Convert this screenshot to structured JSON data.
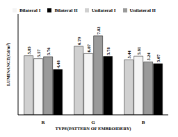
{
  "chart_data": {
    "type": "bar",
    "x_label": "TYPE(PATTERN OF EMBROIDERY)",
    "y_label": "LUMINANCE(Cd/m²)",
    "categories": [
      "R",
      "G",
      "B"
    ],
    "series": [
      {
        "name": "Unilateral I",
        "color": "#d0d0d0",
        "values": [
          5.85,
          6.79,
          5.44
        ]
      },
      {
        "name": "Bilateral I",
        "color": "#f4f4f4",
        "values": [
          5.57,
          6.07,
          5.81
        ]
      },
      {
        "name": "Unilateral II",
        "color": "#9a9a9a",
        "values": [
          5.76,
          7.82,
          5.24
        ]
      },
      {
        "name": "Bilateral II",
        "color": "#000000",
        "values": [
          4.48,
          5.78,
          5.07
        ]
      }
    ],
    "ylim": [
      0,
      10
    ],
    "yticks": [],
    "tick_labels": "x",
    "data_labels": true,
    "legend": "top",
    "grid": false
  }
}
